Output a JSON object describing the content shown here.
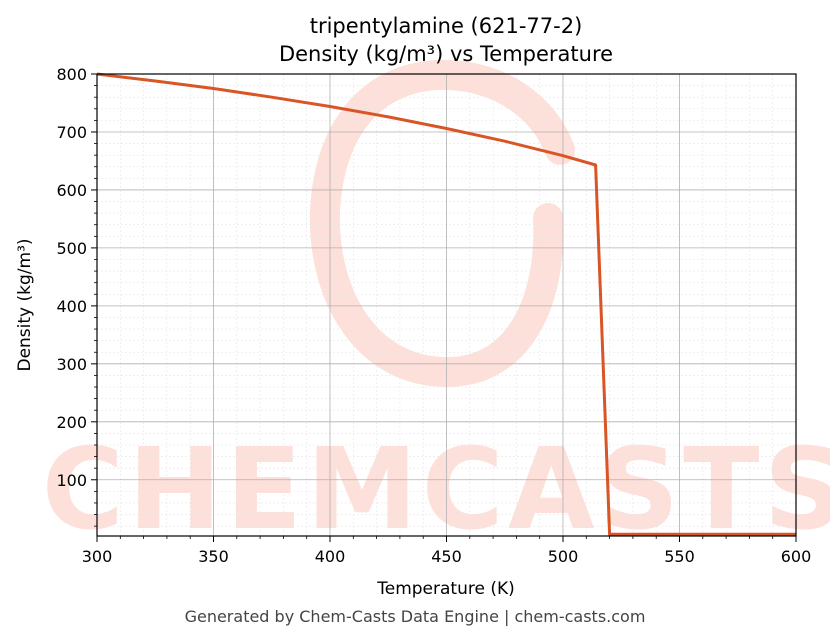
{
  "chart_data": {
    "type": "line",
    "title": "tripentylamine (621-77-2)",
    "subtitle": "Density (kg/m³) vs Temperature",
    "xlabel": "Temperature (K)",
    "ylabel": "Density (kg/m³)",
    "xlim": [
      300,
      600
    ],
    "ylim": [
      3,
      800
    ],
    "xticks": [
      300,
      350,
      400,
      450,
      500,
      550,
      600
    ],
    "yticks": [
      100,
      200,
      300,
      400,
      500,
      600,
      700,
      800
    ],
    "grid": true,
    "series": [
      {
        "color": "#d95525",
        "x": [
          300,
          325,
          350,
          375,
          400,
          425,
          450,
          475,
          500,
          514,
          520,
          600
        ],
        "y": [
          800,
          788,
          775,
          760,
          744,
          726,
          706,
          684,
          659,
          643,
          6,
          6
        ]
      }
    ]
  },
  "watermark": {
    "text": "CHEMCASTS",
    "color": "#fde0da"
  },
  "footer": "Generated by Chem-Casts Data Engine | chem-casts.com"
}
